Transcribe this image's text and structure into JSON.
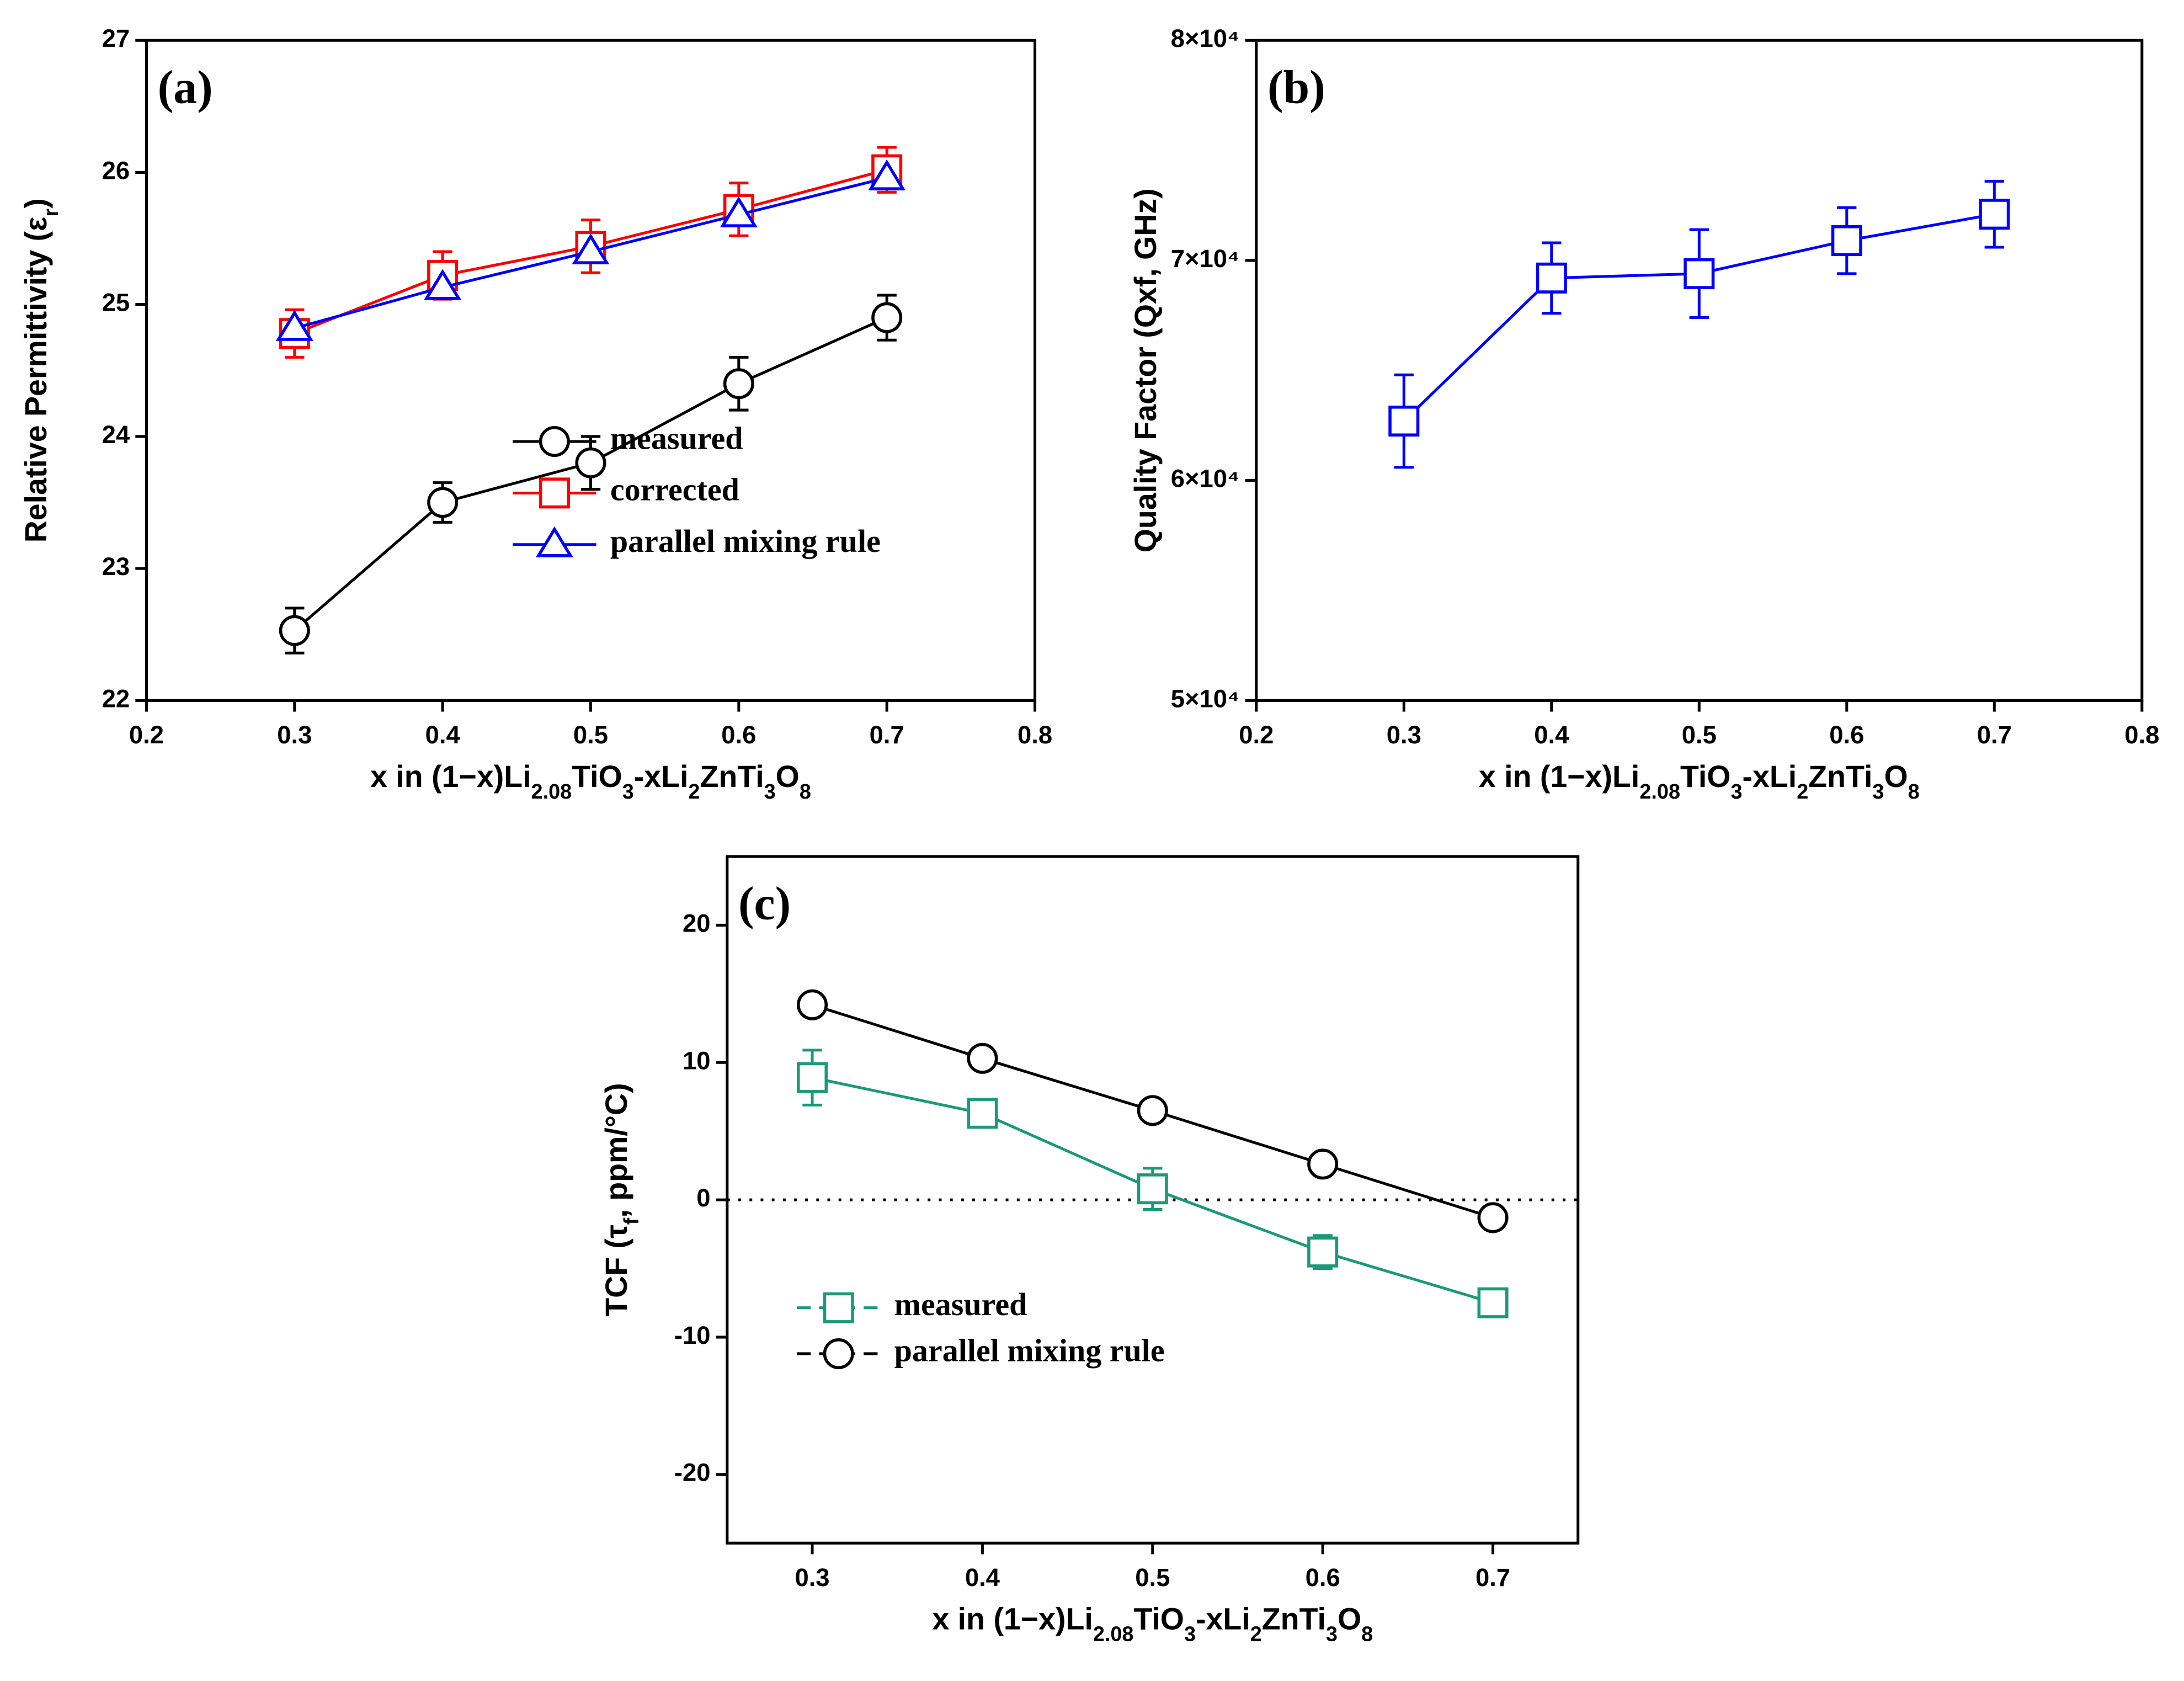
{
  "chart_data": [
    {
      "type": "line",
      "panel_label": "(a)",
      "xlabel": [
        {
          "text": "x in (1−x)Li"
        },
        {
          "text": "2.08",
          "sub": true
        },
        {
          "text": "TiO"
        },
        {
          "text": "3",
          "sub": true
        },
        {
          "text": "-xLi"
        },
        {
          "text": "2",
          "sub": true
        },
        {
          "text": "ZnTi"
        },
        {
          "text": "3",
          "sub": true
        },
        {
          "text": "O"
        },
        {
          "text": "8",
          "sub": true
        }
      ],
      "ylabel": [
        {
          "text": "Relative Permittivity (ε"
        },
        {
          "text": "r",
          "sub": true
        },
        {
          "text": ")"
        }
      ],
      "x": [
        0.3,
        0.4,
        0.5,
        0.6,
        0.7
      ],
      "xlim": [
        0.2,
        0.8
      ],
      "xticks": [
        0.2,
        0.3,
        0.4,
        0.5,
        0.6,
        0.7,
        0.8
      ],
      "ylim": [
        22,
        27
      ],
      "yticks": [
        22,
        23,
        24,
        25,
        26,
        27
      ],
      "legend": "lower right",
      "series": [
        {
          "name": "measured",
          "color": "#000000",
          "marker": "circle",
          "values": [
            22.53,
            23.5,
            23.8,
            24.4,
            24.9
          ],
          "errors": [
            0.17,
            0.15,
            0.2,
            0.2,
            0.17
          ]
        },
        {
          "name": "corrected",
          "color": "#ff0000",
          "marker": "square",
          "values": [
            24.78,
            25.22,
            25.44,
            25.72,
            26.02
          ],
          "errors": [
            0.18,
            0.18,
            0.2,
            0.2,
            0.17
          ]
        },
        {
          "name": "parallel mixing rule",
          "color": "#0000ff",
          "marker": "triangle",
          "values": [
            24.82,
            25.13,
            25.4,
            25.68,
            25.96
          ]
        }
      ]
    },
    {
      "type": "line",
      "panel_label": "(b)",
      "xlabel": [
        {
          "text": "x in (1−x)Li"
        },
        {
          "text": "2.08",
          "sub": true
        },
        {
          "text": "TiO"
        },
        {
          "text": "3",
          "sub": true
        },
        {
          "text": "-xLi"
        },
        {
          "text": "2",
          "sub": true
        },
        {
          "text": "ZnTi"
        },
        {
          "text": "3",
          "sub": true
        },
        {
          "text": "O"
        },
        {
          "text": "8",
          "sub": true
        }
      ],
      "ylabel": [
        {
          "text": "Quality Factor (Qxf, GHz)"
        }
      ],
      "x": [
        0.3,
        0.4,
        0.5,
        0.6,
        0.7
      ],
      "xlim": [
        0.2,
        0.8
      ],
      "xticks": [
        0.2,
        0.3,
        0.4,
        0.5,
        0.6,
        0.7,
        0.8
      ],
      "ylim": [
        50000,
        80000
      ],
      "yticks": [
        {
          "value": 50000,
          "label": "5×10⁴"
        },
        {
          "value": 60000,
          "label": "6×10⁴"
        },
        {
          "value": 70000,
          "label": "7×10⁴"
        },
        {
          "value": 80000,
          "label": "8×10⁴"
        }
      ],
      "series": [
        {
          "color": "#0000ff",
          "marker": "square",
          "values": [
            62700,
            69200,
            69400,
            70900,
            72100
          ],
          "errors": [
            2100,
            1600,
            2000,
            1500,
            1500
          ]
        }
      ]
    },
    {
      "type": "line",
      "panel_label": "(c)",
      "xlabel": [
        {
          "text": "x in (1−x)Li"
        },
        {
          "text": "2.08",
          "sub": true
        },
        {
          "text": "TiO"
        },
        {
          "text": "3",
          "sub": true
        },
        {
          "text": "-xLi"
        },
        {
          "text": "2",
          "sub": true
        },
        {
          "text": "ZnTi"
        },
        {
          "text": "3",
          "sub": true
        },
        {
          "text": "O"
        },
        {
          "text": "8",
          "sub": true
        }
      ],
      "ylabel": [
        {
          "text": "TCF (τ"
        },
        {
          "text": "f",
          "sub": true
        },
        {
          "text": ", ppm/°C)"
        }
      ],
      "x": [
        0.3,
        0.4,
        0.5,
        0.6,
        0.7
      ],
      "xlim": [
        0.25,
        0.75
      ],
      "xticks": [
        0.3,
        0.4,
        0.5,
        0.6,
        0.7
      ],
      "ylim": [
        -25,
        25
      ],
      "yticks": [
        -20,
        -10,
        0,
        10,
        20
      ],
      "reference_line": 0,
      "legend": "lower left",
      "series": [
        {
          "name": "measured",
          "color": "#1a9a78",
          "marker": "square",
          "values": [
            8.9,
            6.3,
            0.8,
            -3.8,
            -7.5
          ],
          "errors": [
            2,
            1,
            1.5,
            1.2,
            0.7
          ]
        },
        {
          "name": "parallel mixing rule",
          "color": "#000000",
          "marker": "circle",
          "values": [
            14.2,
            10.3,
            6.5,
            2.6,
            -1.3
          ]
        }
      ]
    }
  ]
}
